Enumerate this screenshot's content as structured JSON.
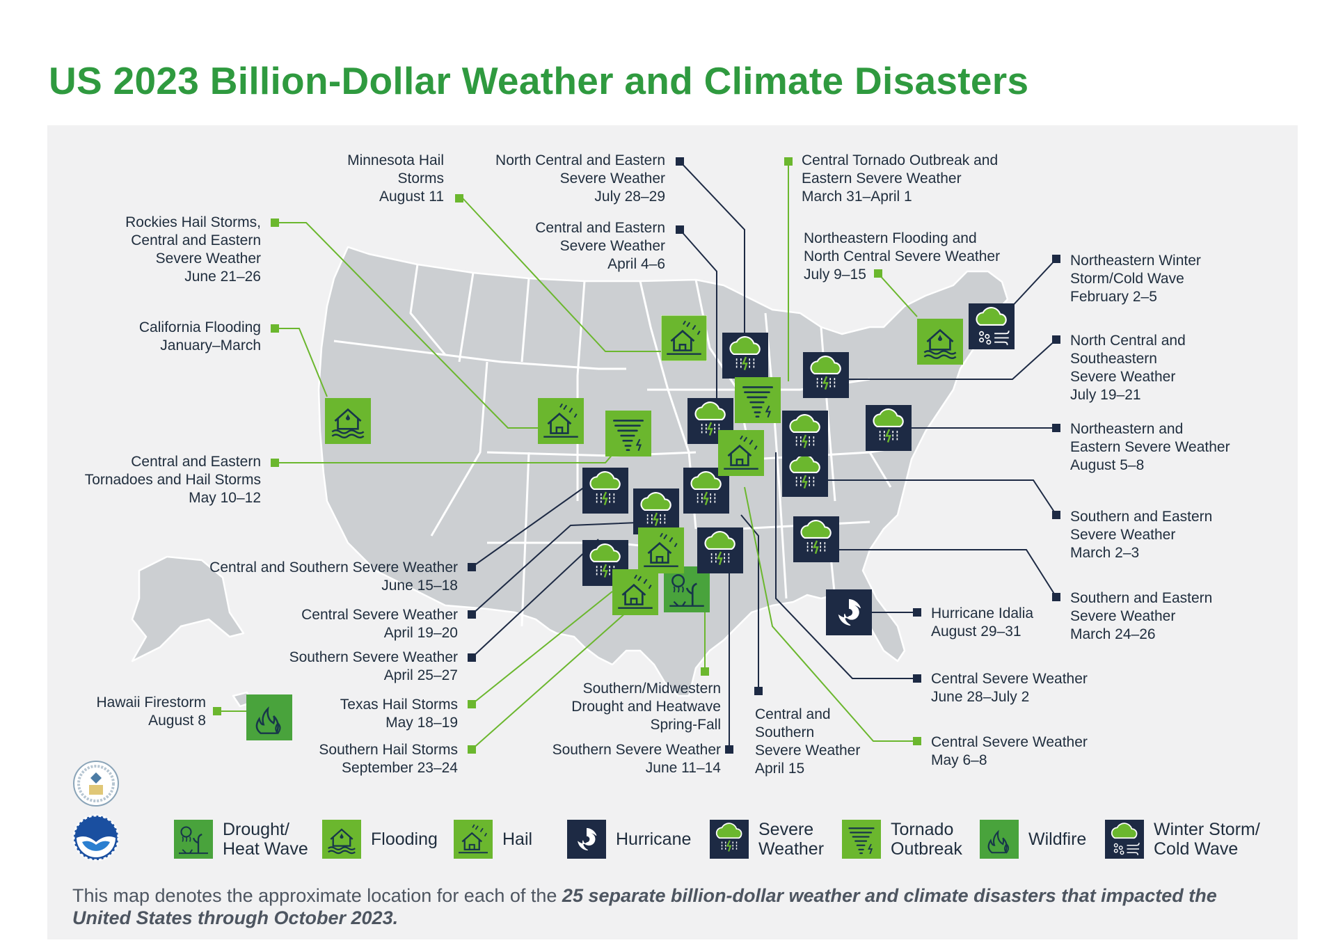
{
  "title": "US 2023 Billion-Dollar Weather and Climate Disasters",
  "colors": {
    "title": "#2f9a3f",
    "green_icon": "#6bb72e",
    "navy_icon": "#1d2a44",
    "map_fill": "#cccfd2",
    "panel": "#f1f1f2",
    "leader_green": "#6bb72e",
    "leader_navy": "#1d2a44"
  },
  "events": [
    {
      "label": "Minnesota Hail\nStorms\nAugust 11",
      "type": "hail"
    },
    {
      "label": "North Central and Eastern\nSevere Weather\nJuly 28–29",
      "type": "severe-weather"
    },
    {
      "label": "Central Tornado Outbreak and\nEastern Severe Weather\nMarch 31–April 1",
      "type": "tornado-outbreak"
    },
    {
      "label": "Rockies Hail Storms,\nCentral and Eastern\nSevere Weather\nJune 21–26",
      "type": "hail"
    },
    {
      "label": "Central and Eastern\nSevere Weather\nApril 4–6",
      "type": "severe-weather"
    },
    {
      "label": "Northeastern Flooding and\nNorth Central Severe Weather\nJuly 9–15",
      "type": "flooding"
    },
    {
      "label": "Northeastern Winter\nStorm/Cold Wave\nFebruary 2–5",
      "type": "winter-storm"
    },
    {
      "label": "California Flooding\nJanuary–March",
      "type": "flooding"
    },
    {
      "label": "North Central and\nSoutheastern\nSevere Weather\nJuly 19–21",
      "type": "severe-weather"
    },
    {
      "label": "Northeastern and\nEastern Severe Weather\nAugust 5–8",
      "type": "severe-weather"
    },
    {
      "label": "Central and Eastern\nTornadoes and Hail Storms\nMay 10–12",
      "type": "tornado-outbreak"
    },
    {
      "label": "Southern and Eastern\nSevere Weather\nMarch 2–3",
      "type": "severe-weather"
    },
    {
      "label": "Central and Southern Severe Weather\nJune 15–18",
      "type": "severe-weather"
    },
    {
      "label": "Southern and Eastern\nSevere Weather\nMarch 24–26",
      "type": "severe-weather"
    },
    {
      "label": "Central Severe Weather\nApril 19–20",
      "type": "severe-weather"
    },
    {
      "label": "Hurricane Idalia\nAugust 29–31",
      "type": "hurricane"
    },
    {
      "label": "Southern Severe Weather\nApril 25–27",
      "type": "severe-weather"
    },
    {
      "label": "Central Severe Weather\nJune 28–July 2",
      "type": "severe-weather"
    },
    {
      "label": "Southern/Midwestern\nDrought and Heatwave\nSpring-Fall",
      "type": "drought"
    },
    {
      "label": "Hawaii Firestorm\nAugust 8",
      "type": "wildfire"
    },
    {
      "label": "Texas Hail Storms\nMay 18–19",
      "type": "hail"
    },
    {
      "label": "Central and\nSouthern\nSevere Weather\nApril 15",
      "type": "severe-weather"
    },
    {
      "label": "Central Severe Weather\nMay 6–8",
      "type": "severe-weather"
    },
    {
      "label": "Southern Hail Storms\nSeptember 23–24",
      "type": "hail"
    },
    {
      "label": "Southern Severe Weather\nJune 11–14",
      "type": "severe-weather"
    }
  ],
  "legend": [
    {
      "label": "Drought/\nHeat Wave",
      "icon": "drought-icon"
    },
    {
      "label": "Flooding",
      "icon": "flooding-icon"
    },
    {
      "label": "Hail",
      "icon": "hail-icon"
    },
    {
      "label": "Hurricane",
      "icon": "hurricane-icon"
    },
    {
      "label": "Severe\nWeather",
      "icon": "severe-weather-icon"
    },
    {
      "label": "Tornado\nOutbreak",
      "icon": "tornado-icon"
    },
    {
      "label": "Wildfire",
      "icon": "wildfire-icon"
    },
    {
      "label": "Winter Storm/\nCold Wave",
      "icon": "winter-storm-icon"
    }
  ],
  "caption": {
    "plain": "This map denotes the approximate location for each of the ",
    "bold": "25 separate billion-dollar weather and climate disasters that impacted the United States through October 2023."
  }
}
